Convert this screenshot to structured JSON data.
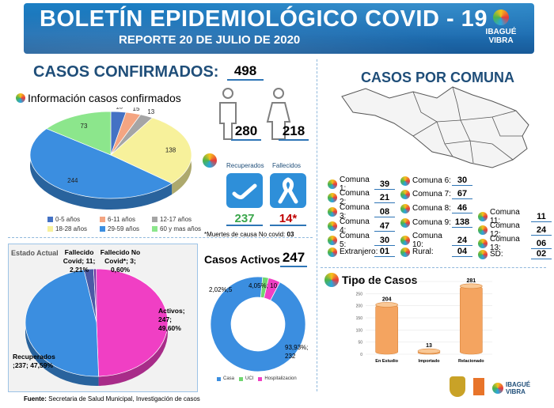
{
  "header": {
    "title": "BOLETÍN EPIDEMIOLÓGICO COVID - 19",
    "subtitle": "REPORTE 20 DE JULIO DE 2020",
    "brand_line1": "IBAGUÉ",
    "brand_line2": "VIBRA"
  },
  "confirmados": {
    "label": "CASOS CONFIRMADOS:",
    "total": "498",
    "info_title": "Información casos confirmados",
    "hombres": "280",
    "mujeres": "218"
  },
  "estado": {
    "recuperados_label": "Recuperados",
    "fallecidos_label": "Fallecidos",
    "recuperados": "237",
    "fallecidos": "14*",
    "nota_prefix": "*Muertes de causa No covid: ",
    "nota_valor": "03"
  },
  "comunas": {
    "title": "CASOS POR COMUNA",
    "items": [
      {
        "label": "Comuna 1:",
        "value": "39"
      },
      {
        "label": "Comuna 2:",
        "value": "21"
      },
      {
        "label": "Comuna 3:",
        "value": "08"
      },
      {
        "label": "Comuna 4:",
        "value": "47"
      },
      {
        "label": "Comuna 5:",
        "value": "30"
      },
      {
        "label": "Extranjero:",
        "value": "01"
      },
      {
        "label": "Comuna 6:",
        "value": "30"
      },
      {
        "label": "Comuna 7:",
        "value": "67"
      },
      {
        "label": "Comuna 8:",
        "value": "46"
      },
      {
        "label": "Comuna 9:",
        "value": "138"
      },
      {
        "label": "Comuna 10:",
        "value": "24"
      },
      {
        "label": "Rural:",
        "value": "04"
      },
      {
        "label": "Comuna 11:",
        "value": "11"
      },
      {
        "label": "Comuna 12:",
        "value": "24"
      },
      {
        "label": "Comuna 13:",
        "value": "06"
      },
      {
        "label": "SD:",
        "value": "02"
      }
    ]
  },
  "activos": {
    "label": "Casos Activos",
    "total": "247"
  },
  "tipo": {
    "label": "Tipo de Casos"
  },
  "footer": {
    "fuente_label": "Fuente:",
    "fuente_text": " Secretaria de Salud Municipal, Investigación de casos"
  },
  "colors": {
    "banner": "#1e6fb3",
    "heading": "#1f4e79",
    "green": "#3aa64b",
    "red": "#c00000"
  },
  "chart_data": [
    {
      "type": "pie",
      "categories": [
        "0-5 años",
        "6-11 años",
        "12-17 años",
        "18-28 años",
        "29-59 años",
        "60 y mas años"
      ],
      "values": [
        15,
        15,
        13,
        138,
        244,
        73
      ],
      "colors": [
        "#4472c4",
        "#f4a582",
        "#a5a5a5",
        "#f7f19b",
        "#3b8ee0",
        "#8ce68c"
      ],
      "legend": "bottom"
    },
    {
      "type": "pie",
      "title": "Estado Actual",
      "categories": [
        "Fallecido Covid",
        "Fallecido No Covid*",
        "Activos",
        "Recuperados"
      ],
      "values": [
        11,
        3,
        247,
        237
      ],
      "labels": [
        "Fallecido Covid; 11; 2,21%",
        "Fallecido No Covid*; 3; 0,60%",
        "Activos; 247; 49,60%",
        "Recuperados ;237; 47,59%"
      ],
      "colors": [
        "#4b5aa6",
        "#7030a0",
        "#f03fc4",
        "#3b8ee0"
      ]
    },
    {
      "type": "pie",
      "categories": [
        "Casa",
        "UCI",
        "Hospitalizacion"
      ],
      "values": [
        232,
        5,
        10
      ],
      "labels": [
        "93,93%; 232",
        "2,02%;5",
        "4,05%; 10"
      ],
      "colors": [
        "#3b8ee0",
        "#6fd66f",
        "#f03fc4"
      ],
      "legend": "bottom"
    },
    {
      "type": "bar",
      "categories": [
        "En Estudio",
        "Importado",
        "Relacionado"
      ],
      "values": [
        204,
        13,
        281
      ],
      "ylim": [
        0,
        300
      ],
      "yticks": [
        0,
        50,
        100,
        150,
        200,
        250,
        300
      ],
      "colors": [
        "#f4a460"
      ]
    }
  ]
}
